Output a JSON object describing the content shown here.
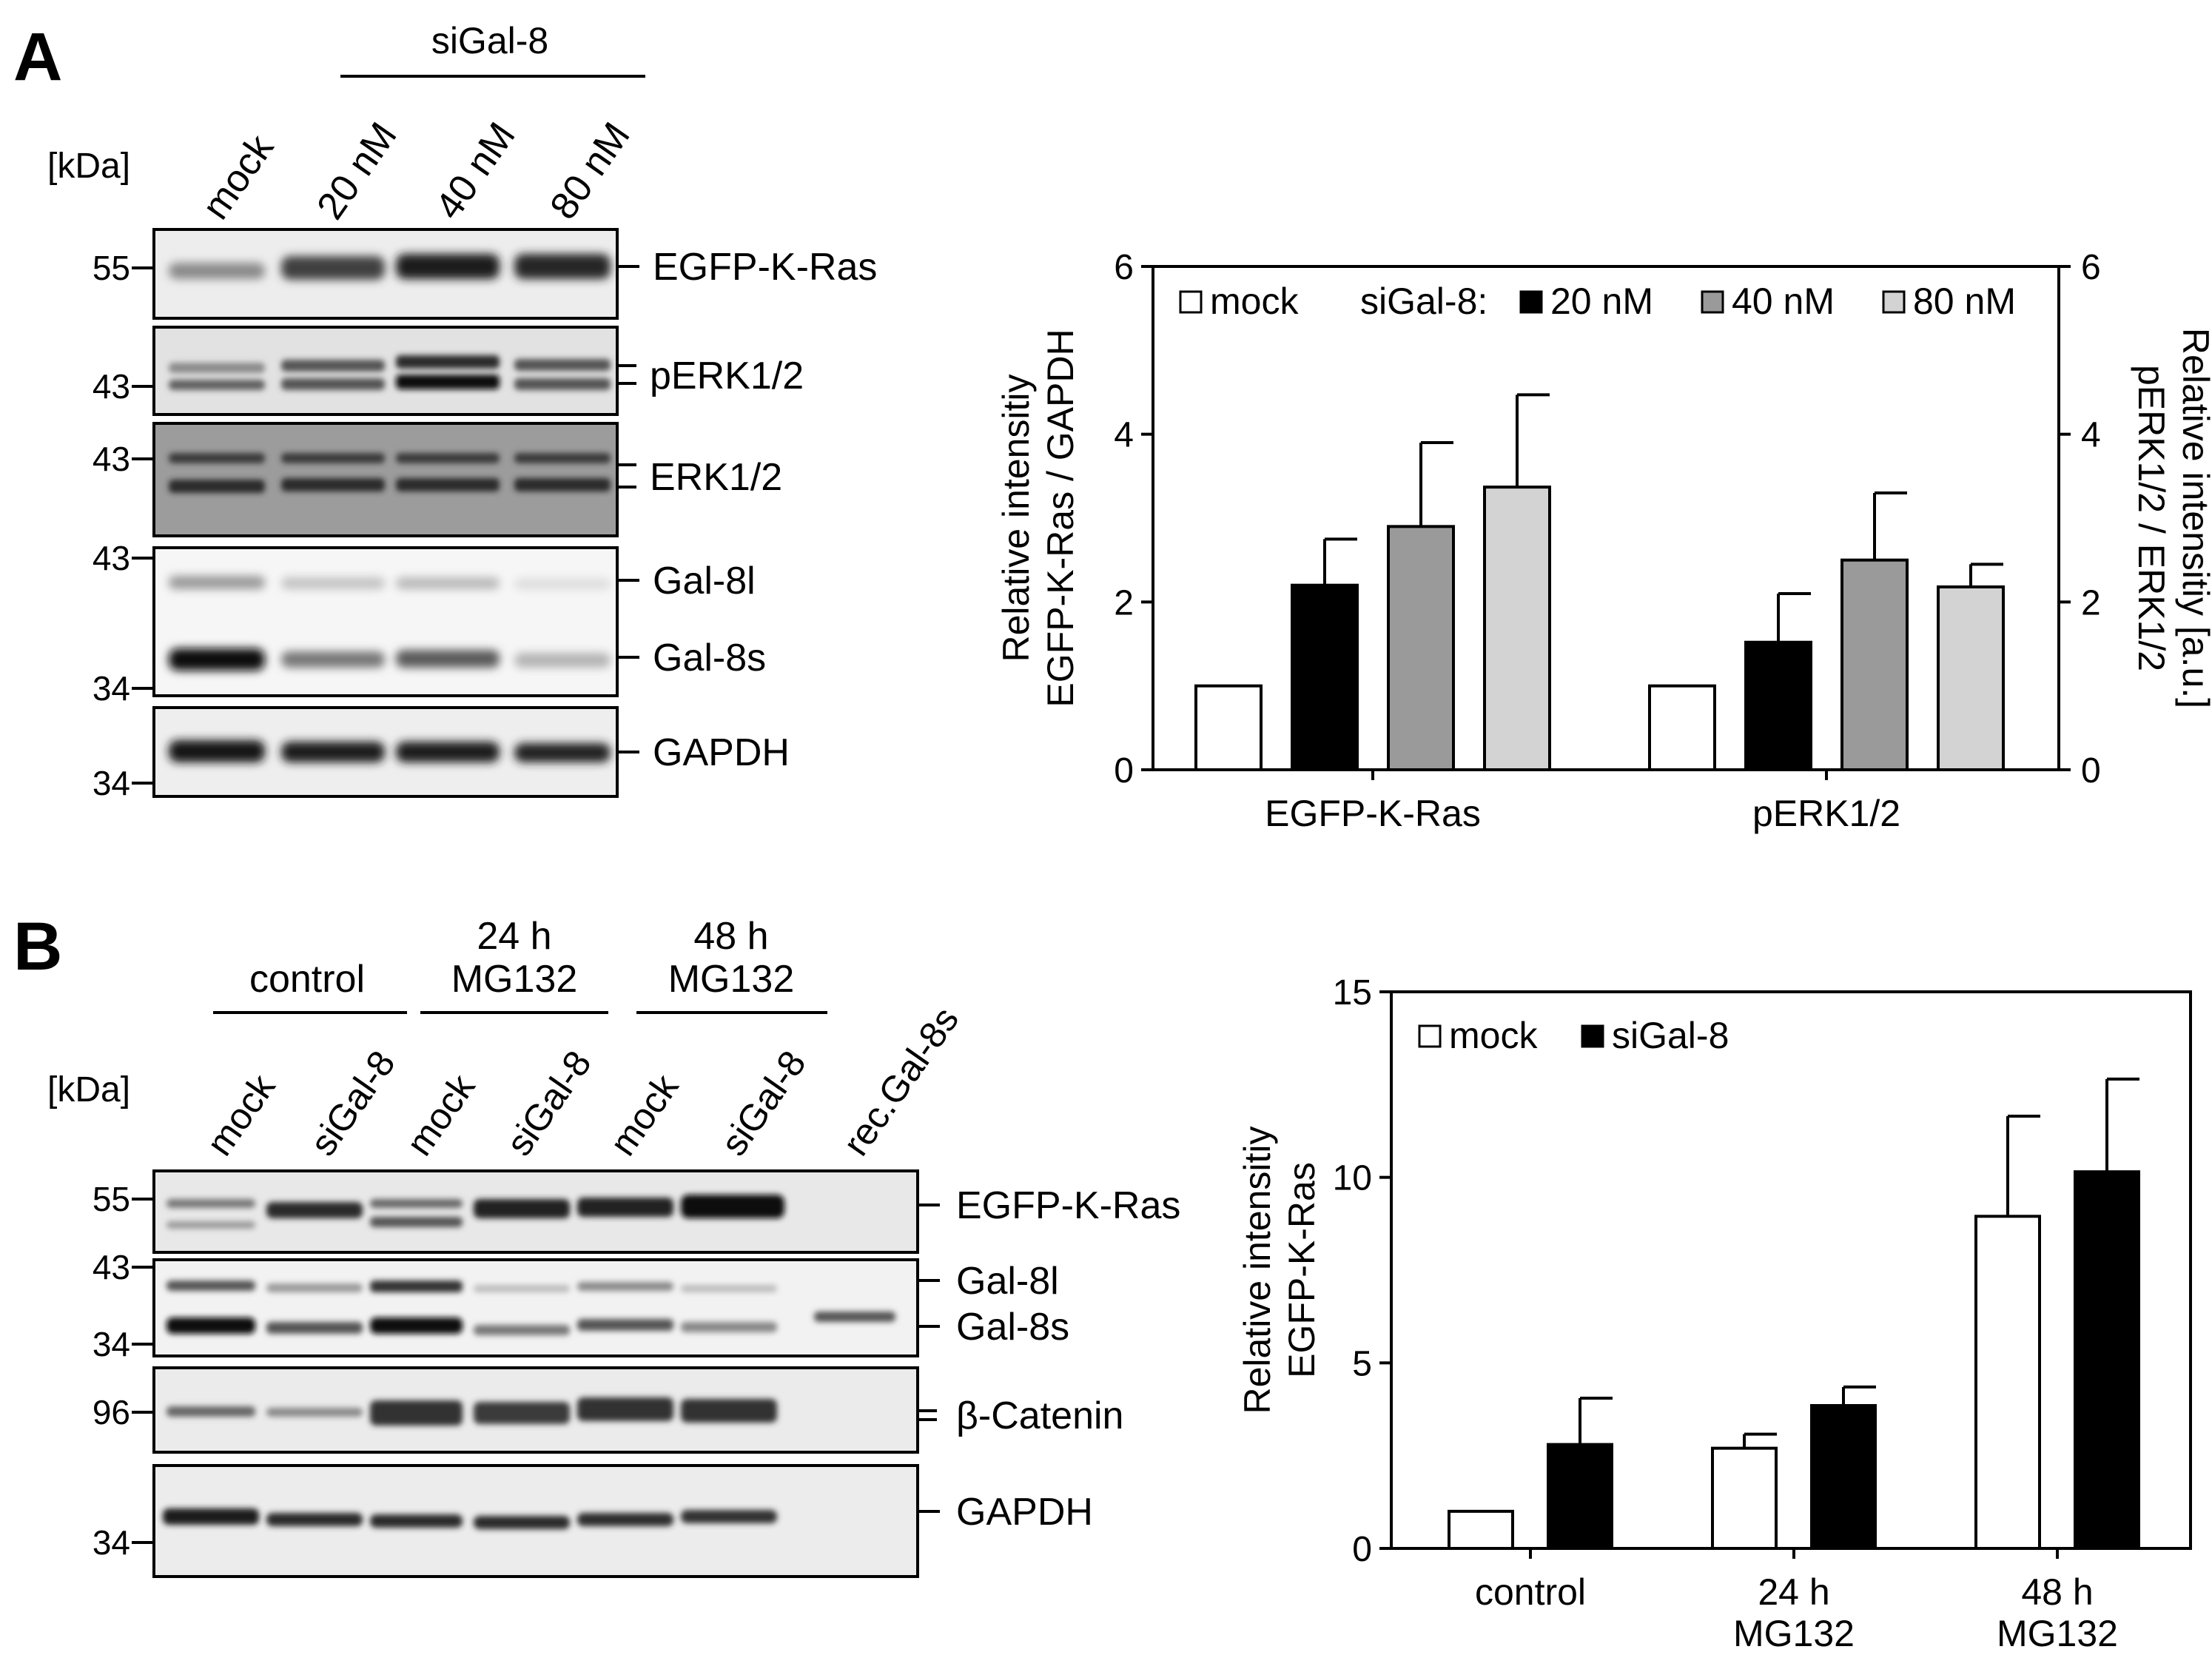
{
  "panelA": {
    "letter": "A",
    "blot": {
      "treatment_group": "siGal-8",
      "kda_label": "[kDa]",
      "lanes": [
        "mock",
        "20 nM",
        "40 nM",
        "80 nM"
      ],
      "markers": [
        "55",
        "43",
        "43",
        "43",
        "34",
        "34"
      ],
      "bands": [
        "EGFP-K-Ras",
        "pERK1/2",
        "ERK1/2",
        "Gal-8l",
        "Gal-8s",
        "GAPDH"
      ]
    }
  },
  "panelB": {
    "letter": "B",
    "blot": {
      "groups": [
        "control",
        "24 h",
        "MG132",
        "48 h",
        "MG132"
      ],
      "kda_label": "[kDa]",
      "lanes": [
        "mock",
        "siGal-8",
        "mock",
        "siGal-8",
        "mock",
        "siGal-8",
        "rec.Gal-8s"
      ],
      "markers": [
        "55",
        "43",
        "34",
        "96",
        "34"
      ],
      "bands": [
        "EGFP-K-Ras",
        "Gal-8l",
        "Gal-8s",
        "β-Catenin",
        "GAPDH"
      ]
    }
  },
  "chart_data": [
    {
      "type": "bar",
      "categories": [
        "EGFP-K-Ras",
        "pERK1/2"
      ],
      "series": [
        {
          "name": "mock",
          "values": [
            1.0,
            1.0
          ],
          "errors": [
            0,
            0
          ],
          "color": "#ffffff"
        },
        {
          "name": "20 nM",
          "values": [
            2.2,
            1.52
          ],
          "errors": [
            0.55,
            0.58
          ],
          "color": "#000000"
        },
        {
          "name": "40 nM",
          "values": [
            2.9,
            2.5
          ],
          "errors": [
            1.0,
            0.8
          ],
          "color": "#9a9a9a"
        },
        {
          "name": "80 nM",
          "values": [
            3.37,
            2.18
          ],
          "errors": [
            1.1,
            0.27
          ],
          "color": "#d3d3d3"
        }
      ],
      "legend_prefix": "siGal-8:",
      "ylabel": [
        "Relative intensitiy",
        "EGFP-K-Ras / GAPDH"
      ],
      "ylabel_right": [
        "Relative intensitiy [a.u.]",
        "pERK1/2 / ERK1/2"
      ],
      "ylim": [
        0,
        6
      ],
      "yticks": [
        "0",
        "2",
        "4",
        "6"
      ],
      "legend_position": "top"
    },
    {
      "type": "bar",
      "categories": [
        "control",
        "24 h MG132",
        "48 h MG132"
      ],
      "category_lines": [
        [
          "control"
        ],
        [
          "24 h",
          "MG132"
        ],
        [
          "48 h",
          "MG132"
        ]
      ],
      "series": [
        {
          "name": "mock",
          "values": [
            1.0,
            2.7,
            8.95
          ],
          "errors": [
            0,
            0.38,
            2.7
          ],
          "color": "#ffffff"
        },
        {
          "name": "siGal-8",
          "values": [
            2.8,
            3.85,
            10.15
          ],
          "errors": [
            1.25,
            0.5,
            2.5
          ],
          "color": "#000000"
        }
      ],
      "ylabel": [
        "Relative intensitiy",
        "EGFP-K-Ras"
      ],
      "ylim": [
        0,
        15
      ],
      "yticks": [
        "0",
        "5",
        "10",
        "15"
      ],
      "legend_position": "top-left"
    }
  ]
}
